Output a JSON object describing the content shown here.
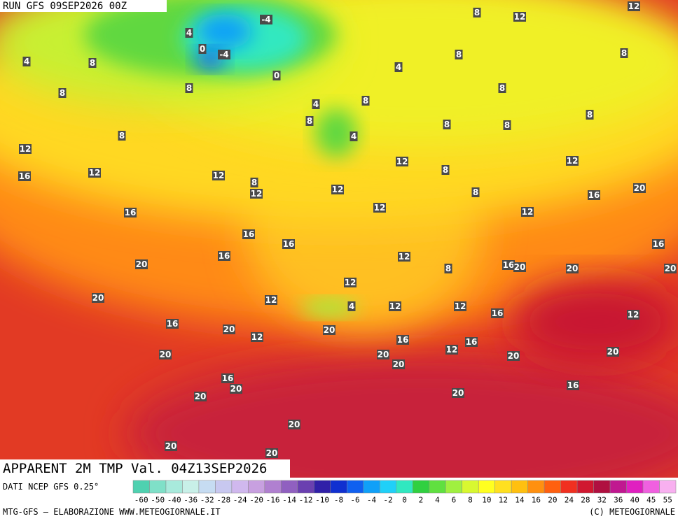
{
  "run_label": "RUN GFS 09SEP2026 00Z",
  "title": "APPARENT 2M TMP Val. 04Z13SEP2026",
  "source": "DATI NCEP GFS 0.25°",
  "credit_left": "MTG-GFS — ELABORAZIONE WWW.METEOGIORNALE.IT",
  "credit_right": "(C) METEOGIORNALE",
  "colorbar": {
    "ticks": [
      -60,
      -50,
      -40,
      -36,
      -32,
      -28,
      -24,
      -20,
      -16,
      -14,
      -12,
      -10,
      -8,
      -6,
      -4,
      -2,
      0,
      2,
      4,
      6,
      8,
      10,
      12,
      14,
      16,
      20,
      24,
      28,
      32,
      36,
      40,
      45,
      55
    ],
    "colors": [
      "#4fd1b0",
      "#7fe0c8",
      "#a8eadc",
      "#c8f0e8",
      "#c6dcf2",
      "#c8c8f0",
      "#d0b8ee",
      "#c8a0e0",
      "#b080d0",
      "#9060c0",
      "#6a40b0",
      "#3020a8",
      "#1030d0",
      "#1060f0",
      "#10a0f8",
      "#20d0f8",
      "#30e8c0",
      "#30d040",
      "#60e040",
      "#a0f040",
      "#d8f830",
      "#ffff20",
      "#ffe020",
      "#ffc010",
      "#ff9010",
      "#ff6010",
      "#f03020",
      "#d01830",
      "#b01040",
      "#c01890",
      "#e020c0",
      "#f060e0",
      "#f8b0f0"
    ]
  },
  "map_labels": [
    12,
    12,
    8,
    4,
    8,
    8,
    8,
    8,
    4,
    0,
    -4,
    -4,
    0,
    4,
    8,
    4,
    8,
    4,
    8,
    8,
    8,
    8,
    8,
    8,
    12,
    16,
    12,
    12,
    8,
    12,
    12,
    12,
    8,
    8,
    12,
    20,
    16,
    12,
    12,
    16,
    16,
    16,
    16,
    20,
    12,
    8,
    16,
    20,
    20,
    16,
    20,
    20,
    12,
    12,
    4,
    12,
    12,
    16,
    12,
    16,
    20,
    20,
    12,
    16,
    12,
    16,
    20,
    20,
    20,
    20,
    20,
    16,
    20,
    20,
    20,
    16,
    20,
    20,
    20
  ]
}
